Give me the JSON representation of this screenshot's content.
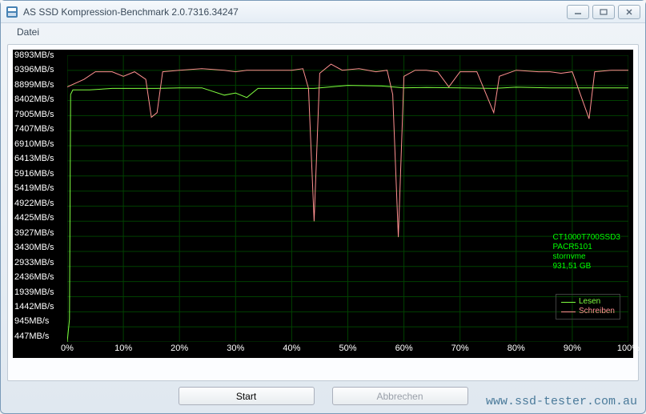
{
  "window": {
    "title": "AS SSD Kompression-Benchmark 2.0.7316.34247"
  },
  "menu": {
    "file": "Datei"
  },
  "chart": {
    "type": "line",
    "background_color": "#000000",
    "grid_color": "#004000",
    "text_color": "#ffffff",
    "label_fontsize": 11,
    "y_axis": {
      "unit": "MB/s",
      "values": [
        9893,
        9396,
        8899,
        8402,
        7905,
        7407,
        6910,
        6413,
        5916,
        5419,
        4922,
        4425,
        3927,
        3430,
        2933,
        2436,
        1939,
        1442,
        945,
        447
      ],
      "min": 447,
      "max": 9893
    },
    "x_axis": {
      "unit": "%",
      "ticks": [
        0,
        10,
        20,
        30,
        40,
        50,
        60,
        70,
        80,
        90,
        100
      ],
      "min": 0,
      "max": 100
    },
    "series": [
      {
        "name": "Lesen",
        "color": "#80ff40",
        "line_width": 1,
        "points": [
          [
            0,
            447
          ],
          [
            0.4,
            1200
          ],
          [
            0.6,
            8600
          ],
          [
            1,
            8750
          ],
          [
            4,
            8750
          ],
          [
            8,
            8800
          ],
          [
            12,
            8800
          ],
          [
            16,
            8800
          ],
          [
            20,
            8820
          ],
          [
            24,
            8820
          ],
          [
            28,
            8580
          ],
          [
            30,
            8650
          ],
          [
            32,
            8500
          ],
          [
            34,
            8800
          ],
          [
            38,
            8800
          ],
          [
            44,
            8800
          ],
          [
            50,
            8900
          ],
          [
            56,
            8880
          ],
          [
            60,
            8820
          ],
          [
            64,
            8830
          ],
          [
            70,
            8820
          ],
          [
            76,
            8800
          ],
          [
            80,
            8840
          ],
          [
            86,
            8820
          ],
          [
            92,
            8820
          ],
          [
            96,
            8820
          ],
          [
            100,
            8820
          ]
        ]
      },
      {
        "name": "Schreiben",
        "color": "#ff9090",
        "line_width": 1,
        "points": [
          [
            0,
            8850
          ],
          [
            3,
            9100
          ],
          [
            5,
            9350
          ],
          [
            8,
            9350
          ],
          [
            10,
            9200
          ],
          [
            12,
            9350
          ],
          [
            14,
            9100
          ],
          [
            15,
            7850
          ],
          [
            16,
            8000
          ],
          [
            17,
            9350
          ],
          [
            20,
            9400
          ],
          [
            24,
            9450
          ],
          [
            28,
            9400
          ],
          [
            30,
            9350
          ],
          [
            32,
            9400
          ],
          [
            36,
            9400
          ],
          [
            40,
            9400
          ],
          [
            42,
            9450
          ],
          [
            43,
            8800
          ],
          [
            44,
            4420
          ],
          [
            45,
            9300
          ],
          [
            47,
            9600
          ],
          [
            49,
            9400
          ],
          [
            52,
            9450
          ],
          [
            55,
            9350
          ],
          [
            57,
            9400
          ],
          [
            58,
            8600
          ],
          [
            59,
            3900
          ],
          [
            60,
            9200
          ],
          [
            62,
            9400
          ],
          [
            64,
            9400
          ],
          [
            66,
            9350
          ],
          [
            68,
            8850
          ],
          [
            69,
            9100
          ],
          [
            70,
            9350
          ],
          [
            73,
            9350
          ],
          [
            76,
            8000
          ],
          [
            77,
            9200
          ],
          [
            80,
            9400
          ],
          [
            84,
            9350
          ],
          [
            86,
            9350
          ],
          [
            88,
            9300
          ],
          [
            90,
            9350
          ],
          [
            93,
            7800
          ],
          [
            94,
            9350
          ],
          [
            97,
            9400
          ],
          [
            100,
            9400
          ]
        ]
      }
    ],
    "device_info": {
      "line1": "CT1000T700SSD3",
      "line2": "PACR5101",
      "line3": "stornvme",
      "line4": "931,51 GB",
      "color": "#00ff00"
    },
    "legend": {
      "border_color": "#404040",
      "read_label": "Lesen",
      "write_label": "Schreiben",
      "read_color": "#80ff40",
      "write_color": "#ff9090"
    }
  },
  "buttons": {
    "start": "Start",
    "abort": "Abbrechen"
  },
  "watermark": "www.ssd-tester.com.au"
}
